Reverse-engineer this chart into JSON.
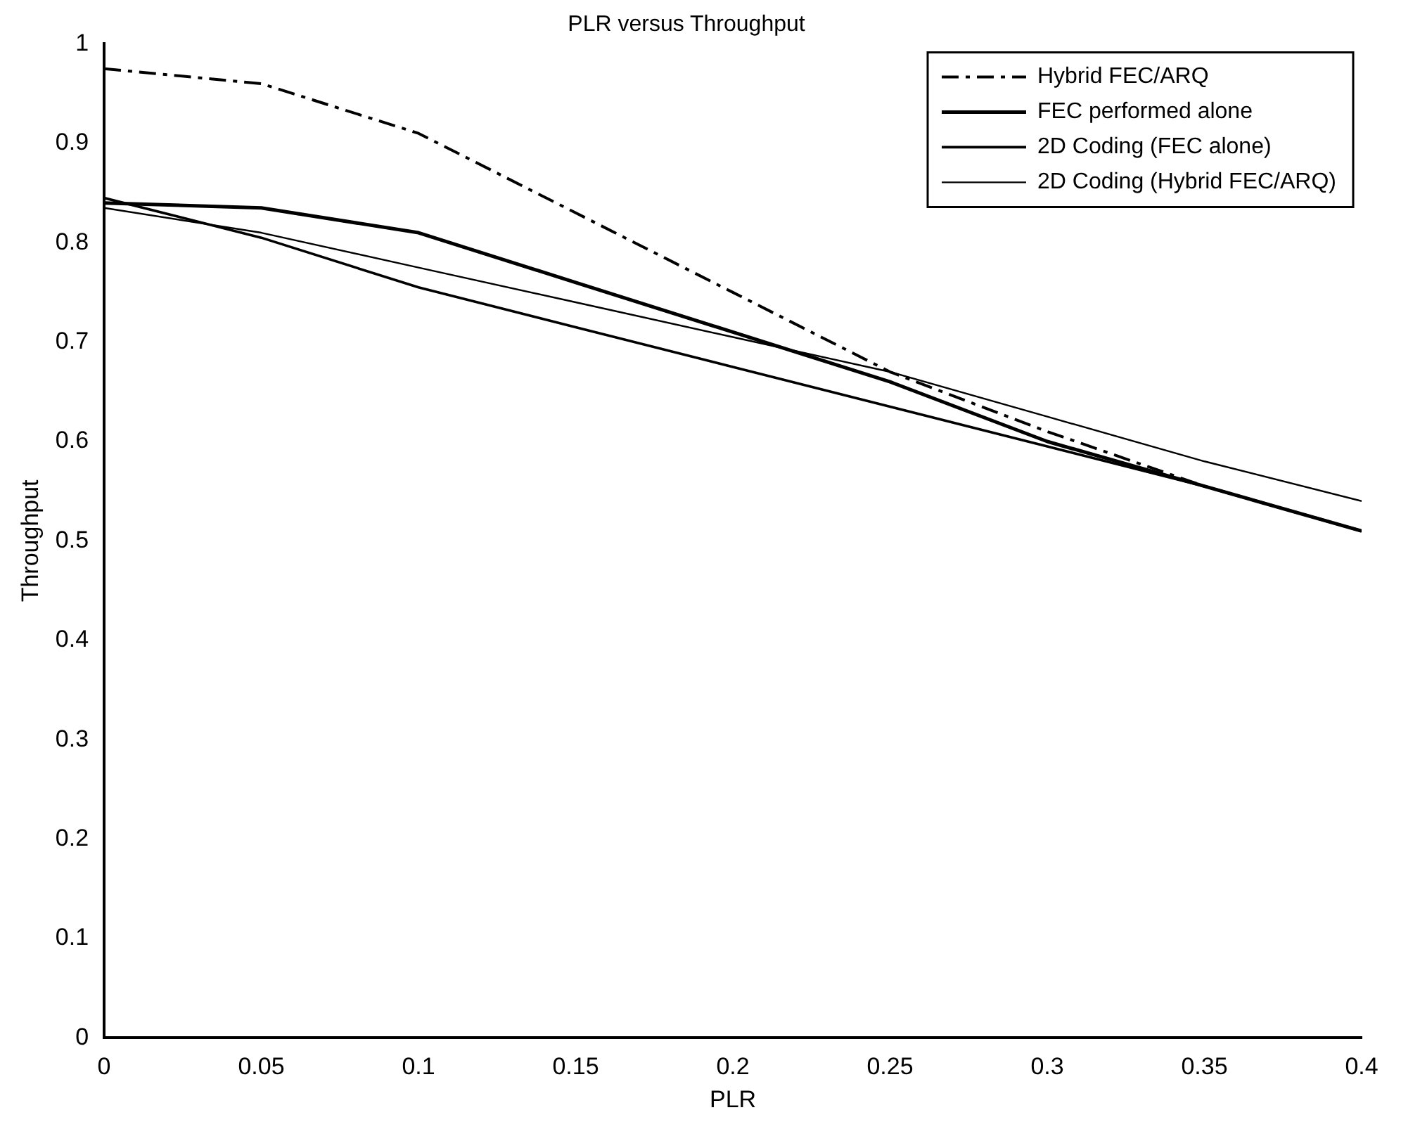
{
  "chart_data": {
    "type": "line",
    "title": "PLR versus Throughput",
    "xlabel": "PLR",
    "ylabel": "Throughput",
    "x": [
      0,
      0.05,
      0.1,
      0.15,
      0.2,
      0.25,
      0.3,
      0.35,
      0.4
    ],
    "series": [
      {
        "name": "Hybrid FEC/ARQ",
        "color": "#000000",
        "line_style": "dashed",
        "values": [
          0.975,
          0.96,
          0.91,
          0.83,
          0.75,
          0.67,
          0.61,
          0.555,
          0.51
        ]
      },
      {
        "name": "FEC performed alone",
        "color": "#000000",
        "line_style": "solid",
        "values": [
          0.84,
          0.835,
          0.81,
          0.76,
          0.71,
          0.66,
          0.6,
          0.555,
          0.51
        ]
      },
      {
        "name": "2D Coding (FEC alone)",
        "color": "#000000",
        "line_style": "solid",
        "values": [
          0.845,
          0.805,
          0.755,
          0.715,
          0.675,
          0.635,
          0.595,
          0.555,
          0.51
        ]
      },
      {
        "name": "2D Coding (Hybrid FEC/ARQ)",
        "color": "#000000",
        "line_style": "solid",
        "values": [
          0.835,
          0.81,
          0.775,
          0.74,
          0.705,
          0.67,
          0.625,
          0.58,
          0.54
        ]
      }
    ],
    "xlim": [
      0,
      0.4
    ],
    "xticks": [
      0,
      0.05,
      0.1,
      0.15,
      0.2,
      0.25,
      0.3,
      0.35,
      0.4
    ],
    "ylim": [
      0,
      1
    ],
    "yticks": [
      0,
      0.1,
      0.2,
      0.3,
      0.4,
      0.5,
      0.6,
      0.7,
      0.8,
      0.9,
      1
    ],
    "grid": false,
    "legend": "top right",
    "marker": "none"
  }
}
